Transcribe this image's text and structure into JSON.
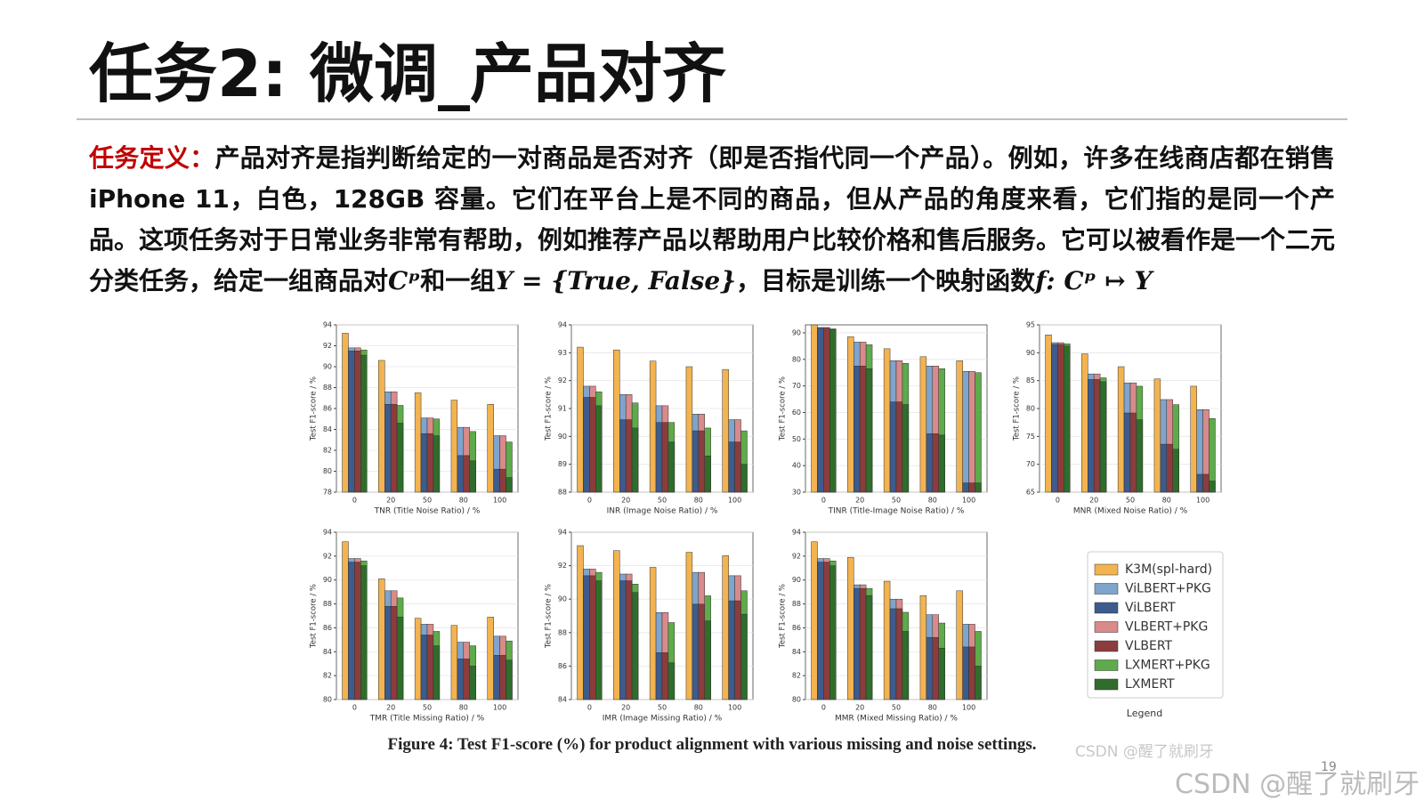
{
  "title": "任务2: 微调_产品对齐",
  "body": {
    "label": "任务定义：",
    "parts": [
      "产品对齐是指判断给定的一对商品是否对齐（即是否指代同一个产品）。例如，许多在线商店都在销售 iPhone 11，白色，128GB 容量。它们在平台上是不同的商品，但从产品的角度来看，它们指的是同一个产品。这项任务对于日常业务非常有帮助，例如推荐产品以帮助用户比较价格和售后服务。它可以被看作是一个二元分类任务，给定一组商品对",
      "Cᵖ",
      "和一组",
      "Y = {True, False}",
      "，目标是训练一个映射函数",
      "f: Cᵖ ↦ Y"
    ]
  },
  "legend": {
    "title": "Legend",
    "entries": [
      {
        "name": "K3M(spl-hard)",
        "color": "#f2b350"
      },
      {
        "name": "ViLBERT+PKG",
        "color": "#7fa4cd"
      },
      {
        "name": "ViLBERT",
        "color": "#3d5b8c"
      },
      {
        "name": "VLBERT+PKG",
        "color": "#d98a8a"
      },
      {
        "name": "VLBERT",
        "color": "#8c3c3c"
      },
      {
        "name": "LXMERT+PKG",
        "color": "#5dab4a"
      },
      {
        "name": "LXMERT",
        "color": "#2f6d2b"
      }
    ]
  },
  "chart_data": [
    {
      "type": "bar",
      "ylabel": "Test F1-score / %",
      "xlabel": "TNR (Title Noise Ratio) / %",
      "categories": [
        "0",
        "20",
        "50",
        "80",
        "100"
      ],
      "ylim": [
        78,
        94
      ],
      "yticks": [
        78,
        80,
        82,
        84,
        86,
        88,
        90,
        92,
        94
      ],
      "grid": true,
      "series": [
        {
          "values": [
            93.2,
            90.6,
            87.5,
            86.8,
            86.4
          ]
        },
        {
          "values": [
            91.8,
            87.6,
            85.1,
            84.2,
            83.4
          ]
        },
        {
          "values": [
            91.5,
            86.4,
            83.6,
            81.5,
            80.2
          ]
        },
        {
          "values": [
            91.8,
            87.6,
            85.1,
            84.2,
            83.4
          ]
        },
        {
          "values": [
            91.5,
            86.4,
            83.6,
            81.5,
            80.2
          ]
        },
        {
          "values": [
            91.6,
            86.3,
            85.0,
            83.8,
            82.8
          ]
        },
        {
          "values": [
            91.1,
            84.6,
            83.4,
            81.0,
            79.4
          ]
        }
      ]
    },
    {
      "type": "bar",
      "ylabel": "Test F1-score / %",
      "xlabel": "INR (Image Noise Ratio) / %",
      "categories": [
        "0",
        "20",
        "50",
        "80",
        "100"
      ],
      "ylim": [
        88,
        94
      ],
      "yticks": [
        88,
        89,
        90,
        91,
        92,
        93,
        94
      ],
      "grid": true,
      "series": [
        {
          "values": [
            93.2,
            93.1,
            92.7,
            92.5,
            92.4
          ]
        },
        {
          "values": [
            91.8,
            91.5,
            91.1,
            90.8,
            90.6
          ]
        },
        {
          "values": [
            91.4,
            90.6,
            90.5,
            90.2,
            89.8
          ]
        },
        {
          "values": [
            91.8,
            91.5,
            91.1,
            90.8,
            90.6
          ]
        },
        {
          "values": [
            91.4,
            90.6,
            90.5,
            90.2,
            89.8
          ]
        },
        {
          "values": [
            91.6,
            91.2,
            90.5,
            90.3,
            90.2
          ]
        },
        {
          "values": [
            91.1,
            90.3,
            89.8,
            89.3,
            89.0
          ]
        }
      ]
    },
    {
      "type": "bar",
      "ylabel": "Test F1-score / %",
      "xlabel": "TINR (Title-Image Noise Ratio) / %",
      "categories": [
        "0",
        "20",
        "50",
        "80",
        "100"
      ],
      "ylim": [
        30,
        93
      ],
      "yticks": [
        30,
        40,
        50,
        60,
        70,
        80,
        90
      ],
      "grid": true,
      "series": [
        {
          "values": [
            93,
            88.5,
            84,
            81,
            79.5
          ]
        },
        {
          "values": [
            92,
            86.5,
            79.5,
            77.5,
            75.5
          ]
        },
        {
          "values": [
            91.8,
            77.5,
            64,
            52,
            33.5
          ]
        },
        {
          "values": [
            92,
            86.5,
            79.5,
            77.5,
            75.5
          ]
        },
        {
          "values": [
            91.8,
            77.5,
            64,
            52,
            33.5
          ]
        },
        {
          "values": [
            91.5,
            85.5,
            78.5,
            76.5,
            75
          ]
        },
        {
          "values": [
            91.2,
            76.5,
            63,
            51.5,
            33.5
          ]
        }
      ]
    },
    {
      "type": "bar",
      "ylabel": "Test F1-score / %",
      "xlabel": "MNR (Mixed Noise Ratio) / %",
      "categories": [
        "0",
        "20",
        "50",
        "80",
        "100"
      ],
      "ylim": [
        65,
        95
      ],
      "yticks": [
        65,
        70,
        75,
        80,
        85,
        90,
        95
      ],
      "grid": true,
      "series": [
        {
          "values": [
            93.2,
            89.8,
            87.5,
            85.3,
            84
          ]
        },
        {
          "values": [
            91.8,
            86.2,
            84.6,
            81.6,
            79.8
          ]
        },
        {
          "values": [
            91.5,
            85.2,
            79.2,
            73.6,
            68.2
          ]
        },
        {
          "values": [
            91.8,
            86.2,
            84.6,
            81.6,
            79.8
          ]
        },
        {
          "values": [
            91.5,
            85.2,
            79.2,
            73.6,
            68.2
          ]
        },
        {
          "values": [
            91.6,
            85.5,
            84,
            80.7,
            78.2
          ]
        },
        {
          "values": [
            91.2,
            84.8,
            78,
            72.7,
            67
          ]
        }
      ]
    },
    {
      "type": "bar",
      "ylabel": "Test F1-score / %",
      "xlabel": "TMR (Title Missing Ratio) / %",
      "categories": [
        "0",
        "20",
        "50",
        "80",
        "100"
      ],
      "ylim": [
        80,
        94
      ],
      "yticks": [
        80,
        82,
        84,
        86,
        88,
        90,
        92,
        94
      ],
      "grid": true,
      "series": [
        {
          "values": [
            93.2,
            90.1,
            86.8,
            86.2,
            86.9
          ]
        },
        {
          "values": [
            91.8,
            89.1,
            86.3,
            84.8,
            85.3
          ]
        },
        {
          "values": [
            91.5,
            87.8,
            85.4,
            83.4,
            83.7
          ]
        },
        {
          "values": [
            91.8,
            89.1,
            86.3,
            84.8,
            85.3
          ]
        },
        {
          "values": [
            91.5,
            87.8,
            85.4,
            83.4,
            83.7
          ]
        },
        {
          "values": [
            91.6,
            88.5,
            85.7,
            84.5,
            84.9
          ]
        },
        {
          "values": [
            91.2,
            86.9,
            84.5,
            82.8,
            83.3
          ]
        }
      ]
    },
    {
      "type": "bar",
      "ylabel": "Test F1-score / %",
      "xlabel": "IMR (Image Missing Ratio) / %",
      "categories": [
        "0",
        "20",
        "50",
        "80",
        "100"
      ],
      "ylim": [
        84,
        94
      ],
      "yticks": [
        84,
        86,
        88,
        90,
        92,
        94
      ],
      "grid": true,
      "series": [
        {
          "values": [
            93.2,
            92.9,
            91.9,
            92.8,
            92.6
          ]
        },
        {
          "values": [
            91.8,
            91.5,
            89.2,
            91.6,
            91.4
          ]
        },
        {
          "values": [
            91.4,
            91.1,
            86.8,
            89.7,
            89.9
          ]
        },
        {
          "values": [
            91.8,
            91.5,
            89.2,
            91.6,
            91.4
          ]
        },
        {
          "values": [
            91.4,
            91.1,
            86.8,
            89.7,
            89.9
          ]
        },
        {
          "values": [
            91.6,
            90.9,
            88.6,
            90.2,
            90.5
          ]
        },
        {
          "values": [
            91.1,
            90.4,
            86.2,
            88.7,
            89.1
          ]
        }
      ]
    },
    {
      "type": "bar",
      "ylabel": "Test F1-score / %",
      "xlabel": "MMR (Mixed Missing Ratio) / %",
      "categories": [
        "0",
        "20",
        "50",
        "80",
        "100"
      ],
      "ylim": [
        80,
        94
      ],
      "yticks": [
        80,
        82,
        84,
        86,
        88,
        90,
        92,
        94
      ],
      "grid": true,
      "series": [
        {
          "values": [
            93.2,
            91.9,
            89.9,
            88.7,
            89.1
          ]
        },
        {
          "values": [
            91.8,
            89.6,
            88.4,
            87.1,
            86.3
          ]
        },
        {
          "values": [
            91.5,
            89.3,
            87.6,
            85.2,
            84.4
          ]
        },
        {
          "values": [
            91.8,
            89.6,
            88.4,
            87.1,
            86.3
          ]
        },
        {
          "values": [
            91.5,
            89.3,
            87.6,
            85.2,
            84.4
          ]
        },
        {
          "values": [
            91.6,
            89.3,
            87.3,
            86.4,
            85.7
          ]
        },
        {
          "values": [
            91.2,
            88.7,
            85.7,
            84.3,
            82.8
          ]
        }
      ]
    }
  ],
  "caption": "Figure 4: Test F1-score (%) for product alignment with various missing and noise settings.",
  "watermark_small": "CSDN @醒了就刷牙",
  "page_number": "19",
  "watermark": "CSDN @醒了就刷牙"
}
